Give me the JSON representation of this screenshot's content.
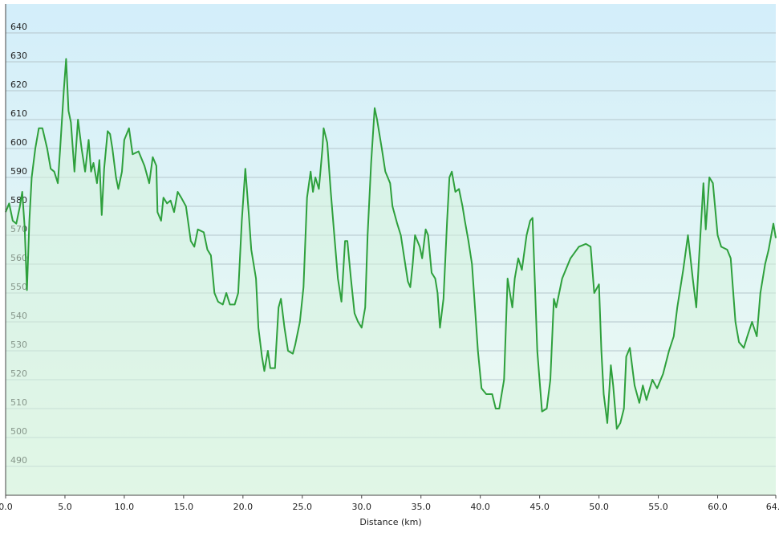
{
  "chart_data": {
    "type": "area",
    "xlabel": "Distance (km)",
    "color": "#2ea03c",
    "fill_color": "#d6f2dc",
    "grid": true,
    "xlim": [
      0,
      64.9
    ],
    "ylim": [
      480,
      650
    ],
    "xticks": [
      {
        "value": 0,
        "label": "0.0"
      },
      {
        "value": 5,
        "label": "5.0"
      },
      {
        "value": 10,
        "label": "10.0"
      },
      {
        "value": 15,
        "label": "15.0"
      },
      {
        "value": 20,
        "label": "20.0"
      },
      {
        "value": 25,
        "label": "25.0"
      },
      {
        "value": 30,
        "label": "30.0"
      },
      {
        "value": 35,
        "label": "35.0"
      },
      {
        "value": 40,
        "label": "40.0"
      },
      {
        "value": 45,
        "label": "45.0"
      },
      {
        "value": 50,
        "label": "50.0"
      },
      {
        "value": 55,
        "label": "55.0"
      },
      {
        "value": 60,
        "label": "60.0"
      },
      64.9
    ],
    "yticks": [
      490,
      500,
      510,
      520,
      530,
      540,
      550,
      560,
      570,
      580,
      590,
      600,
      610,
      620,
      630,
      640
    ],
    "x": [
      0.0,
      0.3,
      0.6,
      0.9,
      1.2,
      1.4,
      1.6,
      1.8,
      2.0,
      2.2,
      2.5,
      2.8,
      3.1,
      3.5,
      3.8,
      4.1,
      4.4,
      4.6,
      4.9,
      5.1,
      5.3,
      5.5,
      5.8,
      6.1,
      6.4,
      6.7,
      7.0,
      7.2,
      7.4,
      7.7,
      7.9,
      8.1,
      8.3,
      8.6,
      8.8,
      9.0,
      9.3,
      9.5,
      9.8,
      10.0,
      10.4,
      10.7,
      11.2,
      11.7,
      12.1,
      12.4,
      12.7,
      12.8,
      13.1,
      13.3,
      13.6,
      13.9,
      14.2,
      14.5,
      14.8,
      15.2,
      15.6,
      15.9,
      16.2,
      16.7,
      17.0,
      17.3,
      17.6,
      17.9,
      18.3,
      18.6,
      18.9,
      19.3,
      19.6,
      19.9,
      20.2,
      20.5,
      20.7,
      21.1,
      21.3,
      21.6,
      21.8,
      22.1,
      22.3,
      22.7,
      23.0,
      23.2,
      23.5,
      23.8,
      24.2,
      24.4,
      24.8,
      25.1,
      25.4,
      25.7,
      25.9,
      26.1,
      26.4,
      26.7,
      26.8,
      27.1,
      27.4,
      27.7,
      28.0,
      28.3,
      28.6,
      28.8,
      29.1,
      29.4,
      29.7,
      30.0,
      30.3,
      30.5,
      30.8,
      31.1,
      31.3,
      31.7,
      32.0,
      32.4,
      32.6,
      33.0,
      33.3,
      33.6,
      33.9,
      34.1,
      34.3,
      34.5,
      34.9,
      35.1,
      35.4,
      35.6,
      35.9,
      36.2,
      36.4,
      36.6,
      36.9,
      37.2,
      37.4,
      37.6,
      37.9,
      38.2,
      38.5,
      38.7,
      39.0,
      39.3,
      39.5,
      39.8,
      40.1,
      40.5,
      41.0,
      41.3,
      41.6,
      42.0,
      42.3,
      42.7,
      42.9,
      43.2,
      43.5,
      43.9,
      44.2,
      44.4,
      44.8,
      45.2,
      45.6,
      45.9,
      46.2,
      46.4,
      46.9,
      47.6,
      48.3,
      48.9,
      49.3,
      49.6,
      50.0,
      50.2,
      50.4,
      50.7,
      51.0,
      51.2,
      51.5,
      51.8,
      52.1,
      52.3,
      52.6,
      53.0,
      53.4,
      53.7,
      54.0,
      54.5,
      54.9,
      55.4,
      55.9,
      56.3,
      56.6,
      57.1,
      57.5,
      57.9,
      58.2,
      58.4,
      58.8,
      59.0,
      59.3,
      59.6,
      60.0,
      60.3,
      60.8,
      61.1,
      61.5,
      61.8,
      62.2,
      62.5,
      62.9,
      63.3,
      63.6,
      64.0,
      64.3,
      64.7,
      64.9
    ],
    "values": [
      578,
      581,
      575,
      574,
      580,
      585,
      573,
      551,
      575,
      590,
      600,
      607,
      607,
      600,
      593,
      592,
      588,
      600,
      620,
      631,
      613,
      609,
      592,
      610,
      600,
      592,
      603,
      592,
      595,
      588,
      596,
      577,
      593,
      606,
      605,
      600,
      590,
      586,
      592,
      603,
      607,
      598,
      599,
      594,
      588,
      597,
      594,
      578,
      575,
      583,
      581,
      582,
      578,
      585,
      583,
      580,
      568,
      566,
      572,
      571,
      565,
      563,
      550,
      547,
      546,
      550,
      546,
      546,
      550,
      575,
      593,
      577,
      565,
      555,
      538,
      528,
      523,
      530,
      524,
      524,
      545,
      548,
      538,
      530,
      529,
      532,
      540,
      552,
      583,
      592,
      585,
      590,
      586,
      600,
      607,
      602,
      585,
      570,
      555,
      547,
      568,
      568,
      555,
      543,
      540,
      538,
      545,
      570,
      595,
      614,
      610,
      600,
      592,
      588,
      580,
      574,
      570,
      562,
      554,
      552,
      560,
      570,
      566,
      562,
      572,
      570,
      557,
      555,
      550,
      538,
      548,
      575,
      590,
      592,
      585,
      586,
      580,
      575,
      568,
      560,
      548,
      530,
      517,
      515,
      515,
      510,
      510,
      520,
      555,
      545,
      555,
      562,
      558,
      570,
      575,
      576,
      530,
      509,
      510,
      520,
      548,
      545,
      555,
      562,
      566,
      567,
      566,
      550,
      553,
      530,
      515,
      505,
      525,
      518,
      503,
      505,
      510,
      528,
      531,
      518,
      512,
      518,
      513,
      520,
      517,
      522,
      530,
      535,
      545,
      558,
      570,
      555,
      545,
      560,
      588,
      572,
      590,
      588,
      570,
      566,
      565,
      562,
      540,
      533,
      531,
      535,
      540,
      535,
      550,
      560,
      565,
      574,
      569
    ]
  }
}
